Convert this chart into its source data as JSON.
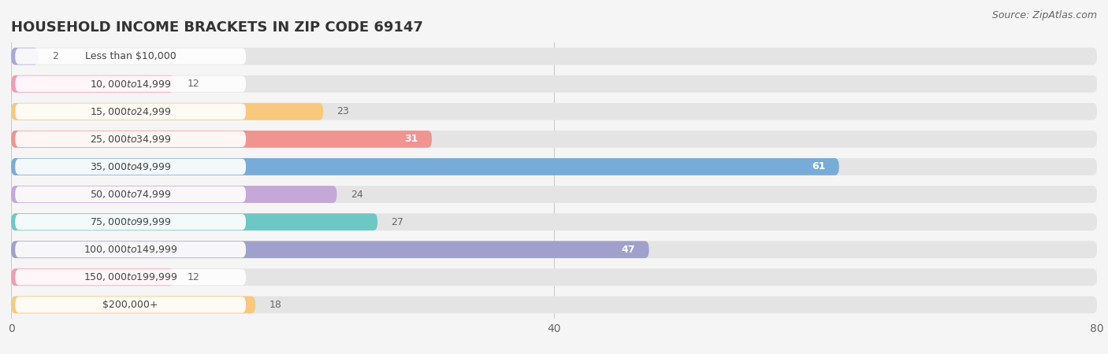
{
  "title": "HOUSEHOLD INCOME BRACKETS IN ZIP CODE 69147",
  "source": "Source: ZipAtlas.com",
  "categories": [
    "Less than $10,000",
    "$10,000 to $14,999",
    "$15,000 to $24,999",
    "$25,000 to $34,999",
    "$35,000 to $49,999",
    "$50,000 to $74,999",
    "$75,000 to $99,999",
    "$100,000 to $149,999",
    "$150,000 to $199,999",
    "$200,000+"
  ],
  "values": [
    2,
    12,
    23,
    31,
    61,
    24,
    27,
    47,
    12,
    18
  ],
  "bar_colors": [
    "#a8a8d8",
    "#f49ab5",
    "#f8c87c",
    "#f09490",
    "#78acd8",
    "#c4a8d8",
    "#6cc8c4",
    "#a0a0cc",
    "#f49ab5",
    "#f8c87c"
  ],
  "bg_color": "#f5f5f5",
  "bar_bg_color": "#e4e4e4",
  "xlim": [
    0,
    80
  ],
  "xticks": [
    0,
    40,
    80
  ],
  "title_fontsize": 13,
  "value_color_inside": "#ffffff",
  "value_color_outside": "#666666",
  "label_box_color": "#ffffff",
  "label_text_color": "#444444"
}
